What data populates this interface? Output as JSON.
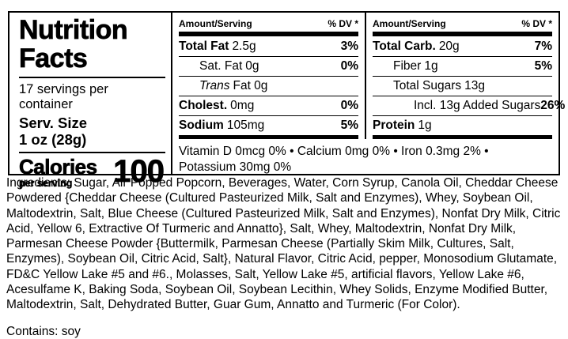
{
  "nutrition_label": {
    "title_line1": "Nutrition",
    "title_line2": "Facts",
    "servings_per_container": "17 servings per container",
    "serving_size_label": "Serv. Size",
    "serving_size_value": "1 oz (28g)",
    "calories_label": "Calories",
    "calories_sublabel": "per serving",
    "calories_value": "100",
    "columns": [
      {
        "header_amount": "Amount/Serving",
        "header_dv": "% DV *",
        "rows": [
          {
            "name": "Total Fat",
            "amount": "2.5g",
            "dv": "3%"
          },
          {
            "name": "Sat. Fat",
            "amount": "0g",
            "dv": "0%"
          },
          {
            "name": "Trans",
            "amount": "Fat 0g",
            "dv": ""
          },
          {
            "name": "Cholest.",
            "amount": "0mg",
            "dv": "0%"
          },
          {
            "name": "Sodium",
            "amount": "105mg",
            "dv": "5%"
          }
        ]
      },
      {
        "header_amount": "Amount/Serving",
        "header_dv": "% DV *",
        "rows": [
          {
            "name": "Total Carb.",
            "amount": "20g",
            "dv": "7%"
          },
          {
            "name": "Fiber",
            "amount": "1g",
            "dv": "5%"
          },
          {
            "name": "Total Sugars",
            "amount": "13g",
            "dv": ""
          },
          {
            "name": "Incl. 13g Added Sugars",
            "amount": "",
            "dv": "26%"
          },
          {
            "name": "Protein",
            "amount": "1g",
            "dv": ""
          }
        ]
      }
    ],
    "micronutrients": "Vitamin D 0mcg 0% • Calcium 0mg 0% • Iron 0.3mg 2% • Potassium 30mg 0%"
  },
  "ingredients": "Ingredients: Sugar, Air Popped Popcorn, Beverages, Water, Corn Syrup, Canola Oil, Cheddar Cheese Powdered {Cheddar Cheese (Cultured Pasteurized Milk, Salt and Enzymes), Whey, Soybean Oil, Maltodextrin, Salt, Blue Cheese (Cultured Pasteurized Milk, Salt and Enzymes), Nonfat Dry Milk, Citric Acid, Yellow 6, Extractive Of Turmeric and Annatto}, Salt, Whey, Maltodextrin, Nonfat Dry Milk, Parmesan Cheese Powder {Buttermilk, Parmesan Cheese (Partially Skim Milk, Cultures, Salt, Enzymes), Soybean Oil, Citric Acid, Salt}, Natural Flavor, Citric Acid, pepper, Monosodium Glutamate, FD&C Yellow Lake #5 and #6., Molasses, Salt, Yellow Lake #5, artificial flavors, Yellow Lake #6, Acesulfame K, Baking Soda, Soybean Oil, Soybean Lecithin, Whey Solids, Enzyme Modified Butter, Maltodextrin, Salt, Dehydrated Butter, Guar Gum, Annatto and Turmeric (For Color).",
  "contains": "Contains: soy",
  "colors": {
    "text": "#000000",
    "background": "#ffffff"
  }
}
